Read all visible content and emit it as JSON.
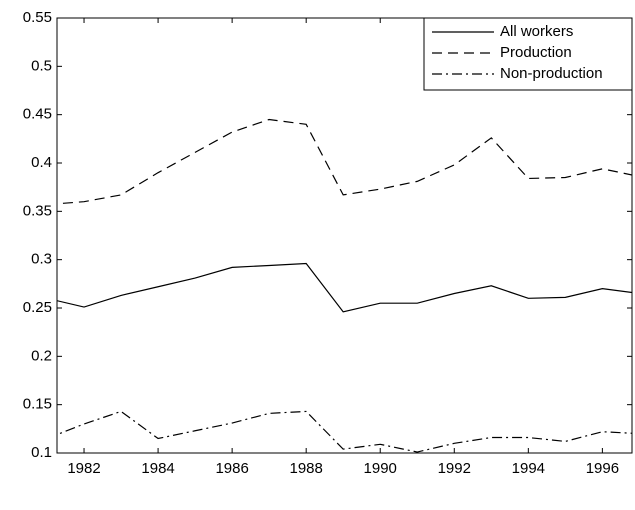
{
  "chart_data": {
    "type": "line",
    "x": [
      1981,
      1982,
      1983,
      1984,
      1985,
      1986,
      1987,
      1988,
      1989,
      1990,
      1991,
      1992,
      1993,
      1994,
      1995,
      1996,
      1997
    ],
    "series": [
      {
        "name": "All workers",
        "color": "#000000",
        "line_style": "solid",
        "values": [
          0.26,
          0.251,
          0.263,
          0.272,
          0.281,
          0.292,
          0.294,
          0.296,
          0.246,
          0.255,
          0.255,
          0.265,
          0.273,
          0.26,
          0.261,
          0.27,
          0.265
        ]
      },
      {
        "name": "Production",
        "color": "#000000",
        "line_style": "dashed",
        "values": [
          0.357,
          0.36,
          0.367,
          0.39,
          0.411,
          0.432,
          0.445,
          0.44,
          0.367,
          0.373,
          0.381,
          0.398,
          0.426,
          0.384,
          0.385,
          0.394,
          0.386
        ]
      },
      {
        "name": "Non-production",
        "color": "#000000",
        "line_style": "dashdot",
        "values": [
          0.115,
          0.13,
          0.143,
          0.115,
          0.123,
          0.131,
          0.141,
          0.143,
          0.104,
          0.109,
          0.101,
          0.11,
          0.116,
          0.116,
          0.112,
          0.122,
          0.12
        ]
      }
    ],
    "xlim": [
      1981.27,
      1996.8
    ],
    "xticks": [
      1982,
      1984,
      1986,
      1988,
      1990,
      1992,
      1994,
      1996
    ],
    "ylim": [
      0.1,
      0.55
    ],
    "yticks": [
      0.1,
      0.15,
      0.2,
      0.25,
      0.3,
      0.35,
      0.4,
      0.45,
      0.5,
      0.55
    ],
    "legend": "upper right"
  }
}
